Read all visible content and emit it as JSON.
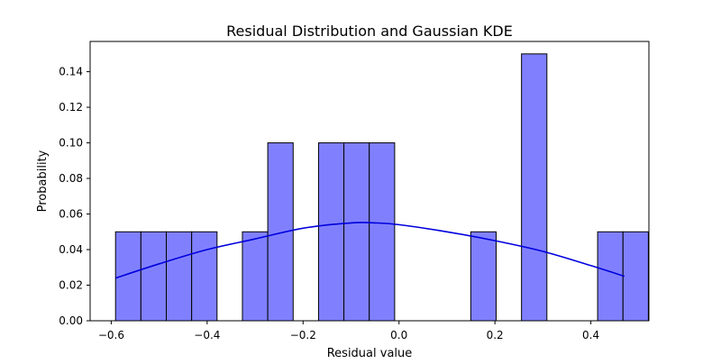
{
  "chart_data": {
    "type": "bar",
    "title": "Residual Distribution and Gaussian KDE",
    "xlabel": "Residual value",
    "ylabel": "Probability",
    "xlim": [
      -0.644,
      0.521
    ],
    "ylim": [
      0.0,
      0.157
    ],
    "x_ticks": [
      -0.6,
      -0.4,
      -0.2,
      0.0,
      0.2,
      0.4
    ],
    "x_tick_labels": [
      "−0.6",
      "−0.4",
      "−0.2",
      "0.0",
      "0.2",
      "0.4"
    ],
    "y_ticks": [
      0.0,
      0.02,
      0.04,
      0.06,
      0.08,
      0.1,
      0.12,
      0.14
    ],
    "y_tick_labels": [
      "0.00",
      "0.02",
      "0.04",
      "0.06",
      "0.08",
      "0.10",
      "0.12",
      "0.14"
    ],
    "grid": false,
    "legend": "none",
    "colors": {
      "bar_fill": "#8080ff",
      "bar_edge": "#000000",
      "kde_line": "#0000dd"
    },
    "histogram": {
      "bin_start": -0.591,
      "bin_width": 0.0529,
      "values": [
        0.05,
        0.05,
        0.05,
        0.05,
        0.0,
        0.05,
        0.1,
        0.0,
        0.1,
        0.1,
        0.1,
        0.0,
        0.0,
        0.0,
        0.05,
        0.0,
        0.15,
        0.0,
        0.0,
        0.05,
        0.05
      ]
    },
    "kde": {
      "x": [
        -0.591,
        -0.5,
        -0.4,
        -0.3,
        -0.2,
        -0.1,
        -0.05,
        0.0,
        0.1,
        0.2,
        0.3,
        0.4,
        0.47
      ],
      "y": [
        0.024,
        0.032,
        0.04,
        0.046,
        0.052,
        0.055,
        0.055,
        0.054,
        0.05,
        0.045,
        0.039,
        0.031,
        0.025
      ]
    }
  }
}
